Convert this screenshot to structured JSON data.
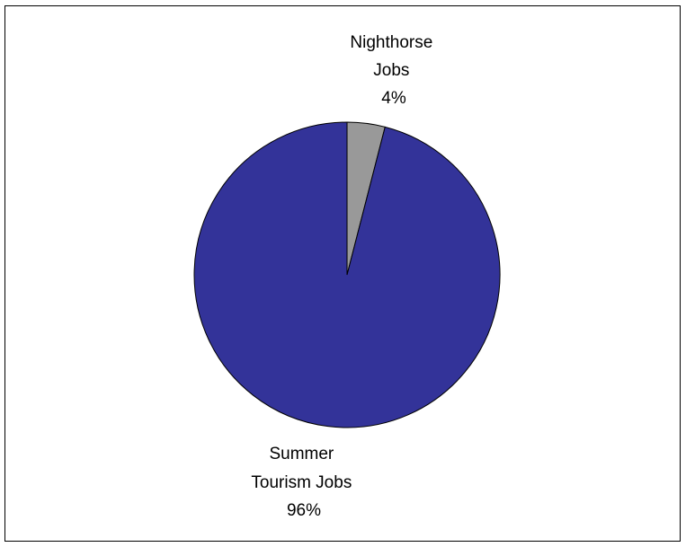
{
  "chart_data": {
    "type": "pie",
    "title": "",
    "start_angle_deg": 0,
    "direction": "clockwise",
    "slices": [
      {
        "label_lines": [
          "Nighthorse",
          "Jobs"
        ],
        "percent_label": "4%",
        "value": 4,
        "color": "#999999"
      },
      {
        "label_lines": [
          "Summer",
          "Tourism Jobs"
        ],
        "percent_label": "96%",
        "value": 96,
        "color": "#333399"
      }
    ],
    "outline_color": "#000000",
    "legend": "none"
  }
}
